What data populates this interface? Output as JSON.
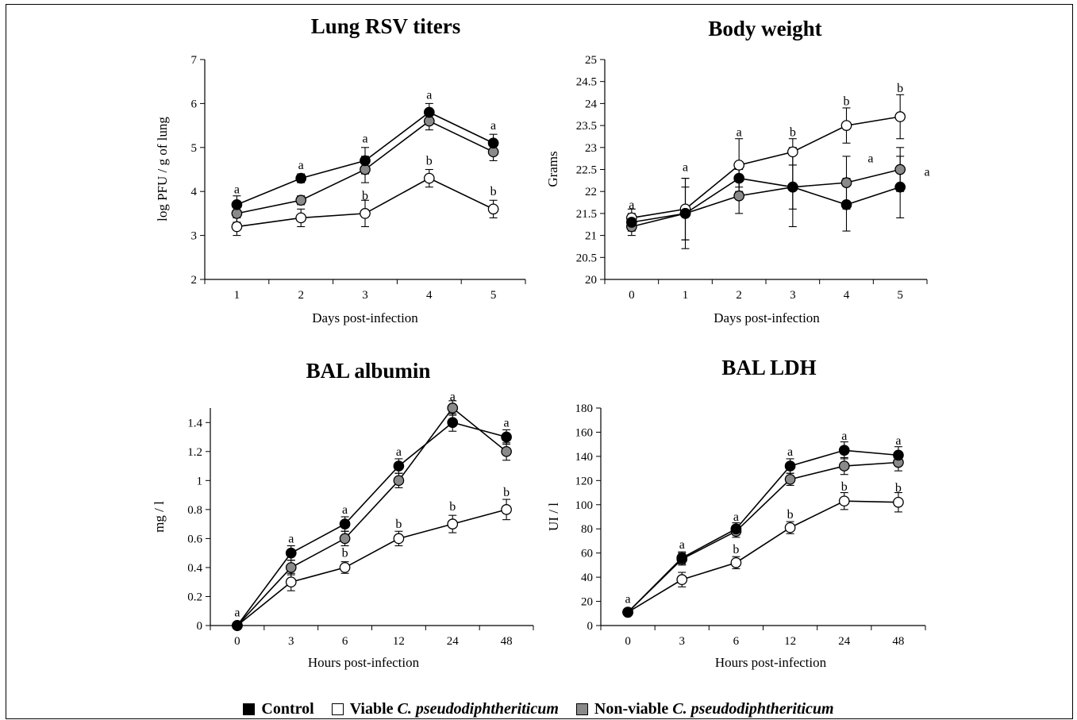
{
  "colors": {
    "control": "#000000",
    "viable": "#ffffff",
    "nonviable": "#8a8a8a"
  },
  "legend": {
    "control": "Control",
    "viable_prefix": "Viable ",
    "nonviable_prefix": "Non-viable ",
    "species": "C. pseudodiphtheriticum"
  },
  "chart_data": [
    {
      "type": "line",
      "title": "Lung RSV titers",
      "xlabel": "Days post-infection",
      "ylabel": "log PFU / g of lung",
      "categories": [
        "1",
        "2",
        "3",
        "4",
        "5"
      ],
      "ylim": [
        2,
        7
      ],
      "yticks": [
        "2",
        "3",
        "4",
        "5",
        "6",
        "7"
      ],
      "series": [
        {
          "name": "Control",
          "values": [
            3.7,
            4.3,
            4.7,
            5.8,
            5.1
          ],
          "errors": [
            0.2,
            0.1,
            0.3,
            0.2,
            0.2
          ]
        },
        {
          "name": "Viable C. pseudodiphtheriticum",
          "values": [
            3.2,
            3.4,
            3.5,
            4.3,
            3.6
          ],
          "errors": [
            0.2,
            0.2,
            0.3,
            0.2,
            0.2
          ]
        },
        {
          "name": "Non-viable C. pseudodiphtheriticum",
          "values": [
            3.5,
            3.8,
            4.5,
            5.6,
            4.9
          ],
          "errors": [
            0.2,
            0.1,
            0.3,
            0.2,
            0.2
          ]
        }
      ],
      "annotations": [
        {
          "x": "1",
          "y": 4.05,
          "text": "a"
        },
        {
          "x": "2",
          "y": 4.6,
          "text": "a"
        },
        {
          "x": "3",
          "y": 5.2,
          "text": "a"
        },
        {
          "x": "4",
          "y": 6.2,
          "text": "a"
        },
        {
          "x": "5",
          "y": 5.5,
          "text": "a"
        },
        {
          "x": "3",
          "y": 3.9,
          "text": "b"
        },
        {
          "x": "4",
          "y": 4.7,
          "text": "b"
        },
        {
          "x": "5",
          "y": 4.0,
          "text": "b"
        }
      ]
    },
    {
      "type": "line",
      "title": "Body weight",
      "xlabel": "Days post-infection",
      "ylabel": "Grams",
      "categories": [
        "0",
        "1",
        "2",
        "3",
        "4",
        "5"
      ],
      "ylim": [
        20,
        25
      ],
      "yticks": [
        "20",
        "20.5",
        "21",
        "21.5",
        "22",
        "22.5",
        "23",
        "23.5",
        "24",
        "24.5",
        "25"
      ],
      "series": [
        {
          "name": "Control",
          "values": [
            21.3,
            21.5,
            22.3,
            22.1,
            21.7,
            22.1
          ],
          "errors": [
            0.2,
            0.8,
            0.2,
            0.5,
            0.6,
            0.7
          ]
        },
        {
          "name": "Viable C. pseudodiphtheriticum",
          "values": [
            21.4,
            21.6,
            22.6,
            22.9,
            23.5,
            23.7
          ],
          "errors": [
            0.2,
            0.7,
            0.6,
            0.3,
            0.4,
            0.5
          ]
        },
        {
          "name": "Non-viable C. pseudodiphtheriticum",
          "values": [
            21.2,
            21.5,
            21.9,
            22.1,
            22.2,
            22.5
          ],
          "errors": [
            0.2,
            0.6,
            0.4,
            0.9,
            0.6,
            0.5
          ]
        }
      ],
      "annotations": [
        {
          "x": "0",
          "y": 21.7,
          "text": "a"
        },
        {
          "x": "1",
          "y": 22.55,
          "text": "a"
        },
        {
          "x": "2",
          "y": 23.35,
          "text": "a"
        },
        {
          "x": "3",
          "y": 23.35,
          "text": "b"
        },
        {
          "x": "4",
          "y": 24.05,
          "text": "b"
        },
        {
          "x": "5",
          "y": 24.35,
          "text": "b"
        },
        {
          "x": "4",
          "y": 22.75,
          "text": "a",
          "dx": 0.45
        },
        {
          "x": "5",
          "y": 22.45,
          "text": "a",
          "dx": 0.5
        }
      ]
    },
    {
      "type": "line",
      "title": "BAL albumin",
      "xlabel": "Hours post-infection",
      "ylabel": "mg / l",
      "categories": [
        "0",
        "3",
        "6",
        "12",
        "24",
        "48"
      ],
      "ylim": [
        0,
        1.5
      ],
      "yticks": [
        "0",
        "0.2",
        "0.4",
        "0.6",
        "0.8",
        "1",
        "1.2",
        "1.4"
      ],
      "series": [
        {
          "name": "Control",
          "values": [
            0,
            0.5,
            0.7,
            1.1,
            1.4,
            1.3
          ],
          "errors": [
            0,
            0.05,
            0.05,
            0.05,
            0.06,
            0.05
          ]
        },
        {
          "name": "Viable C. pseudodiphtheriticum",
          "values": [
            0,
            0.3,
            0.4,
            0.6,
            0.7,
            0.8
          ],
          "errors": [
            0,
            0.06,
            0.04,
            0.05,
            0.06,
            0.07
          ]
        },
        {
          "name": "Non-viable C. pseudodiphtheriticum",
          "values": [
            0,
            0.4,
            0.6,
            1.0,
            1.5,
            1.2
          ],
          "errors": [
            0,
            0.05,
            0.05,
            0.05,
            0.05,
            0.06
          ]
        }
      ],
      "annotations": [
        {
          "x": "0",
          "y": 0.09,
          "text": "a"
        },
        {
          "x": "3",
          "y": 0.6,
          "text": "a"
        },
        {
          "x": "6",
          "y": 0.8,
          "text": "a"
        },
        {
          "x": "12",
          "y": 1.2,
          "text": "a"
        },
        {
          "x": "24",
          "y": 1.58,
          "text": "a"
        },
        {
          "x": "48",
          "y": 1.4,
          "text": "a"
        },
        {
          "x": "6",
          "y": 0.5,
          "text": "b"
        },
        {
          "x": "12",
          "y": 0.7,
          "text": "b"
        },
        {
          "x": "24",
          "y": 0.82,
          "text": "b"
        },
        {
          "x": "48",
          "y": 0.92,
          "text": "b"
        }
      ]
    },
    {
      "type": "line",
      "title": "BAL LDH",
      "xlabel": "Hours post-infection",
      "ylabel": "UI / l",
      "categories": [
        "0",
        "3",
        "6",
        "12",
        "24",
        "48"
      ],
      "ylim": [
        0,
        180
      ],
      "yticks": [
        "0",
        "20",
        "40",
        "60",
        "80",
        "100",
        "120",
        "140",
        "160",
        "180"
      ],
      "series": [
        {
          "name": "Control",
          "values": [
            11,
            56,
            80,
            132,
            145,
            141
          ],
          "errors": [
            1,
            5,
            5,
            6,
            7,
            7
          ]
        },
        {
          "name": "Viable C. pseudodiphtheriticum",
          "values": [
            11,
            38,
            52,
            81,
            103,
            102
          ],
          "errors": [
            1,
            6,
            5,
            5,
            7,
            8
          ]
        },
        {
          "name": "Non-viable C. pseudodiphtheriticum",
          "values": [
            11,
            55,
            78,
            121,
            132,
            135
          ],
          "errors": [
            1,
            5,
            5,
            5,
            7,
            7
          ]
        }
      ],
      "annotations": [
        {
          "x": "0",
          "y": 22,
          "text": "a"
        },
        {
          "x": "3",
          "y": 67,
          "text": "a"
        },
        {
          "x": "6",
          "y": 90,
          "text": "a"
        },
        {
          "x": "12",
          "y": 144,
          "text": "a"
        },
        {
          "x": "24",
          "y": 157,
          "text": "a"
        },
        {
          "x": "48",
          "y": 153,
          "text": "a"
        },
        {
          "x": "6",
          "y": 63,
          "text": "b"
        },
        {
          "x": "12",
          "y": 92,
          "text": "b"
        },
        {
          "x": "24",
          "y": 115,
          "text": "b"
        },
        {
          "x": "48",
          "y": 114,
          "text": "b"
        }
      ]
    }
  ]
}
